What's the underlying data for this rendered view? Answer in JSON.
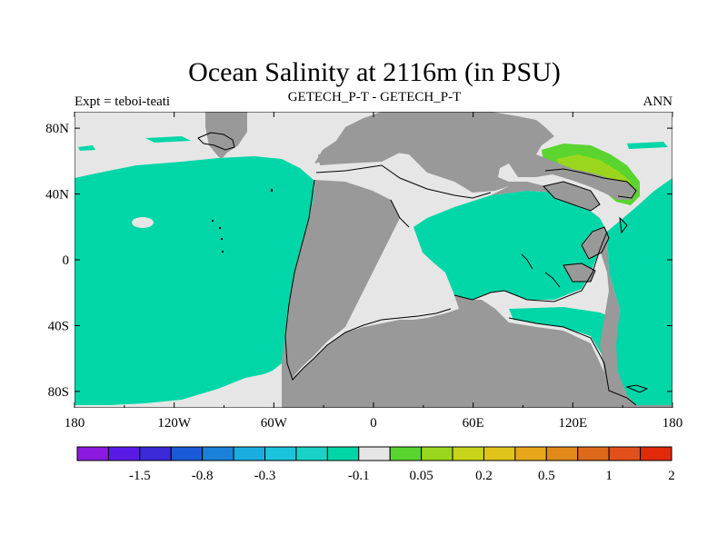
{
  "title": "Ocean Salinity at 2116m (in PSU)",
  "left_label": "Expt = teboi-teati",
  "center_label": "GETECH_P-T - GETECH_P-T",
  "right_label": "ANN",
  "colors": {
    "land": "#999999",
    "ocean_near_zero": "#e6e6e6",
    "ocean_minus_0p1": "#00d6a8",
    "ocean_plus_0p1": "#5ad42e",
    "ocean_plus_0p2": "#9bd61e",
    "coast": "#000000"
  },
  "map": {
    "projection": "cylindrical-equidistant",
    "lon_range": [
      -180,
      180
    ],
    "lat_range": [
      -90,
      90
    ],
    "x_ticks": [
      "180",
      "120W",
      "60W",
      "0",
      "60E",
      "120E",
      "180"
    ],
    "y_ticks": [
      "80N",
      "40N",
      "0",
      "40S",
      "80S"
    ],
    "x_tick_values": [
      -180,
      -120,
      -60,
      0,
      60,
      120,
      180
    ],
    "y_tick_values": [
      80,
      40,
      0,
      -40,
      -80
    ]
  },
  "colorbar": {
    "colors": [
      "#8a1ae0",
      "#5a1ae6",
      "#3a2ad8",
      "#1a5ad6",
      "#1a82d8",
      "#1aaee0",
      "#1ac4dc",
      "#1ad2c6",
      "#00d6a8",
      "#e6e6e6",
      "#5ad42e",
      "#9bd61e",
      "#c8d41a",
      "#e0c41a",
      "#e6a81a",
      "#e08a1a",
      "#dc6a1a",
      "#e0501a",
      "#e02a0a"
    ],
    "labels": [
      "-1.5",
      "-0.8",
      "-0.3",
      "-0.1",
      "0.05",
      "0.2",
      "0.5",
      "1",
      "2"
    ],
    "label_after_box": [
      1,
      3,
      5,
      8,
      10,
      12,
      14,
      16,
      18
    ]
  }
}
